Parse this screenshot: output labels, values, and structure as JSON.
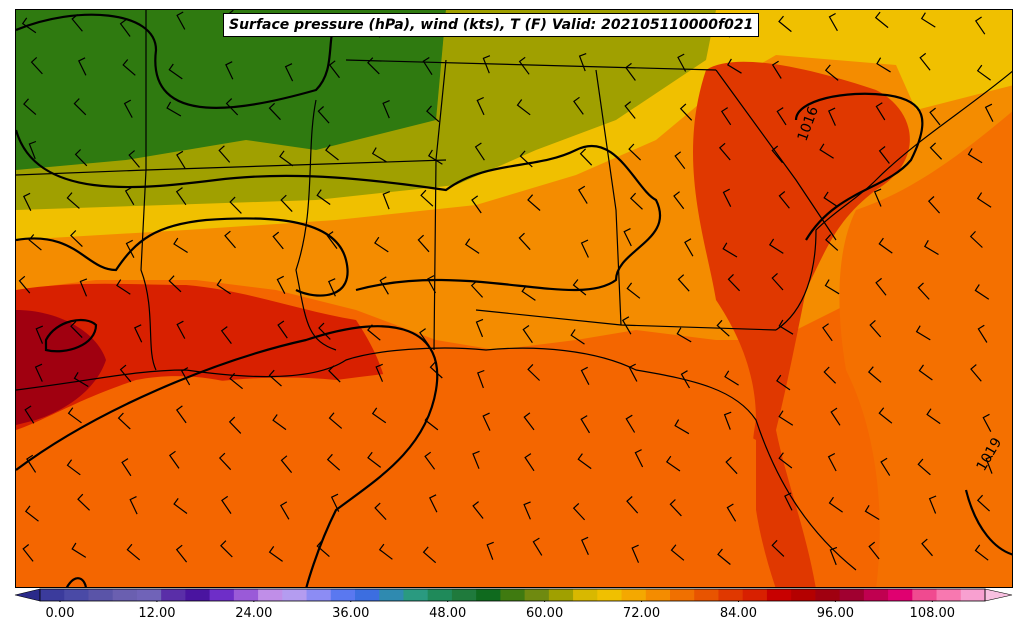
{
  "title": "Surface pressure (hPa), wind (kts), T (F) Valid: 202105110000f021",
  "isobar_labels": [
    "1016",
    "1019"
  ],
  "colorbar": {
    "tick_labels": [
      "0.00",
      "12.00",
      "24.00",
      "36.00",
      "48.00",
      "60.00",
      "72.00",
      "84.00",
      "96.00",
      "108.00"
    ],
    "colors": [
      "#3b3b9c",
      "#4a4aa6",
      "#5a54a8",
      "#6a5fb0",
      "#7063b8",
      "#5a2ea8",
      "#4a14a0",
      "#6e2ec8",
      "#9a5ad8",
      "#c08ee8",
      "#b49cf0",
      "#8c8cf4",
      "#5a78f0",
      "#3c6ee0",
      "#2f8ab0",
      "#2a9a80",
      "#1f8a5a",
      "#1f7a3c",
      "#0f6a1e",
      "#3f7a10",
      "#6f8a10",
      "#a0a000",
      "#d8b800",
      "#f0c000",
      "#f4a800",
      "#f48c00",
      "#f07000",
      "#e85400",
      "#e03800",
      "#d82000",
      "#c80000",
      "#b40000",
      "#a00010",
      "#a00030",
      "#c00050",
      "#e00070",
      "#f04a90",
      "#f878b0",
      "#f8a0d0"
    ]
  }
}
